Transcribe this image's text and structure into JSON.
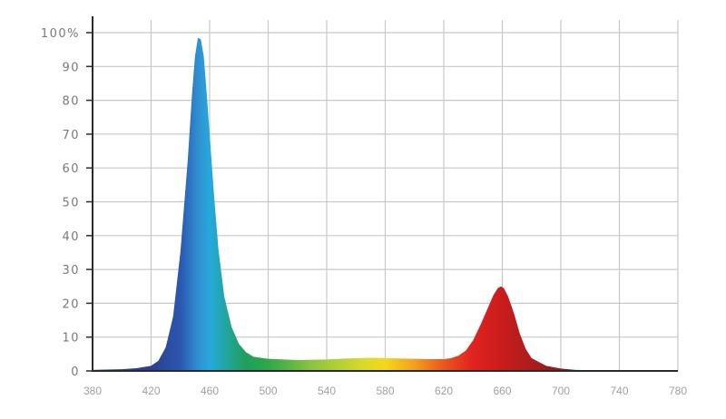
{
  "chart_data": {
    "type": "area",
    "title": "",
    "xlabel": "",
    "ylabel": "",
    "xlim": [
      380,
      780
    ],
    "ylim": [
      0,
      100
    ],
    "grid": true,
    "legend": "none",
    "x_ticks": [
      "380",
      "420",
      "460",
      "500",
      "540",
      "580",
      "620",
      "660",
      "700",
      "740",
      "780"
    ],
    "y_ticks": [
      "0",
      "10",
      "20",
      "30",
      "40",
      "50",
      "60",
      "70",
      "80",
      "90",
      "100%"
    ],
    "fill_gradient": [
      {
        "wavelength": 420,
        "color": "#2a3f8f"
      },
      {
        "wavelength": 440,
        "color": "#2b57b0"
      },
      {
        "wavelength": 452,
        "color": "#2f8fd0"
      },
      {
        "wavelength": 460,
        "color": "#27a8dd"
      },
      {
        "wavelength": 470,
        "color": "#22a6a6"
      },
      {
        "wavelength": 485,
        "color": "#1f9f5a"
      },
      {
        "wavelength": 500,
        "color": "#2ea84a"
      },
      {
        "wavelength": 530,
        "color": "#8cc43f"
      },
      {
        "wavelength": 565,
        "color": "#d8da2a"
      },
      {
        "wavelength": 580,
        "color": "#f3d81b"
      },
      {
        "wavelength": 600,
        "color": "#f2a01e"
      },
      {
        "wavelength": 620,
        "color": "#e8571f"
      },
      {
        "wavelength": 640,
        "color": "#e0221f"
      },
      {
        "wavelength": 660,
        "color": "#c91c1c"
      },
      {
        "wavelength": 700,
        "color": "#8f1b1b"
      },
      {
        "wavelength": 730,
        "color": "#5a1212"
      }
    ],
    "series": [
      {
        "x": [
          380,
          400,
          410,
          420,
          425,
          430,
          435,
          440,
          445,
          448,
          450,
          452,
          454,
          456,
          458,
          460,
          463,
          466,
          470,
          475,
          480,
          485,
          490,
          500,
          520,
          540,
          560,
          570,
          580,
          600,
          610,
          620,
          625,
          630,
          635,
          640,
          645,
          650,
          654,
          657,
          659,
          661,
          664,
          668,
          672,
          676,
          680,
          690,
          700,
          710,
          720,
          730,
          780
        ],
        "y": [
          0.3,
          0.5,
          0.8,
          1.5,
          3,
          7,
          16,
          35,
          62,
          82,
          93,
          98.5,
          98,
          93,
          82,
          70,
          52,
          36,
          22,
          13,
          8,
          5.5,
          4.2,
          3.6,
          3.2,
          3.4,
          3.8,
          3.9,
          3.8,
          3.6,
          3.5,
          3.5,
          3.8,
          4.5,
          6,
          9,
          13.5,
          18.5,
          22.5,
          24.5,
          25,
          24.5,
          22,
          17,
          11,
          6.5,
          3.8,
          1.5,
          0.7,
          0.3,
          0.2,
          0.1,
          0
        ]
      }
    ]
  }
}
